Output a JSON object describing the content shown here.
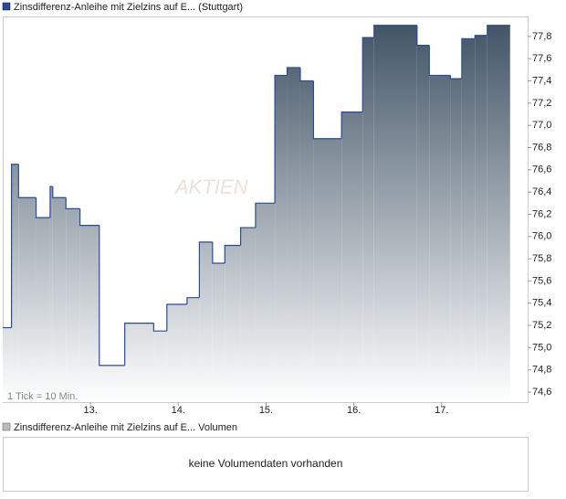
{
  "chart_data": {
    "type": "line",
    "step": true,
    "series": [
      {
        "name": "Zinsdifferenz-Anleihe mit Zielzins auf E... (Stuttgart)",
        "color": "#2b4a9c",
        "x": [
          12.0,
          12.1,
          12.18,
          12.38,
          12.54,
          12.57,
          12.72,
          12.88,
          13.1,
          13.39,
          13.72,
          13.87,
          14.1,
          14.24,
          14.39,
          14.53,
          14.71,
          14.88,
          15.1,
          15.24,
          15.39,
          15.54,
          15.86,
          16.1,
          16.23,
          16.72,
          16.86,
          17.1,
          17.23,
          17.38,
          17.52,
          17.78
        ],
        "values": [
          75.18,
          76.65,
          76.35,
          76.17,
          76.45,
          76.35,
          76.25,
          76.1,
          74.84,
          75.22,
          75.15,
          75.39,
          75.45,
          75.95,
          75.76,
          75.92,
          76.08,
          76.3,
          77.45,
          77.52,
          77.4,
          76.88,
          77.12,
          77.79,
          77.9,
          77.72,
          77.45,
          77.42,
          77.78,
          77.81,
          77.9,
          77.9
        ]
      }
    ],
    "xlim": [
      12,
      17.98
    ],
    "xticks": [
      {
        "value": 13,
        "label": "13."
      },
      {
        "value": 14,
        "label": "14."
      },
      {
        "value": 15,
        "label": "15."
      },
      {
        "value": 16,
        "label": "16."
      },
      {
        "value": 17,
        "label": "17."
      }
    ],
    "ylim": [
      74.51,
      77.98
    ],
    "yticks": [
      {
        "value": 74.6,
        "label": "74,6"
      },
      {
        "value": 74.8,
        "label": "74,8"
      },
      {
        "value": 75.0,
        "label": "75,0"
      },
      {
        "value": 75.2,
        "label": "75,2"
      },
      {
        "value": 75.4,
        "label": "75,4"
      },
      {
        "value": 75.6,
        "label": "75,6"
      },
      {
        "value": 75.8,
        "label": "75,8"
      },
      {
        "value": 76.0,
        "label": "76,0"
      },
      {
        "value": 76.2,
        "label": "76,2"
      },
      {
        "value": 76.4,
        "label": "76,4"
      },
      {
        "value": 76.6,
        "label": "76,6"
      },
      {
        "value": 76.8,
        "label": "76,8"
      },
      {
        "value": 77.0,
        "label": "77,0"
      },
      {
        "value": 77.2,
        "label": "77,2"
      },
      {
        "value": 77.4,
        "label": "77,4"
      },
      {
        "value": 77.6,
        "label": "77,6"
      },
      {
        "value": 77.8,
        "label": "77,8"
      }
    ],
    "annotations": {
      "tick_note": "1 Tick = 10 Min.",
      "watermark": "AKTIEN"
    }
  },
  "volume_panel": {
    "legend": "Zinsdifferenz-Anleihe mit Zielzins auf E... Volumen",
    "message": "keine Volumendaten vorhanden"
  }
}
